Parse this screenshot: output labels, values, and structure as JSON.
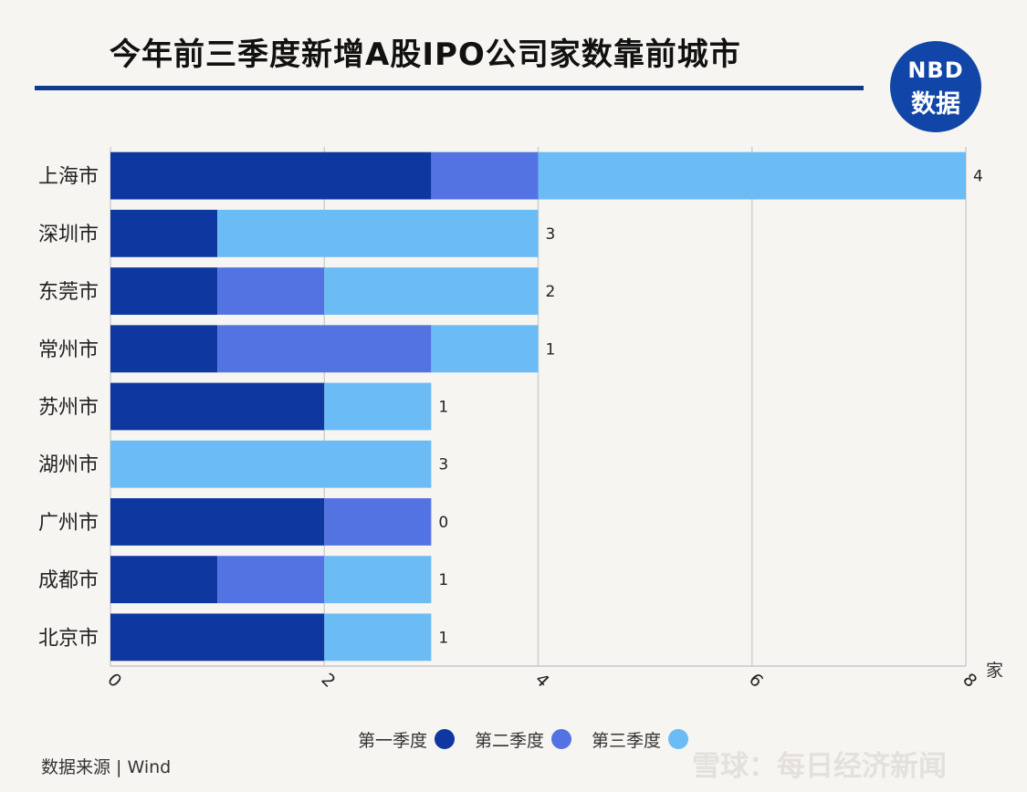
{
  "header": {
    "title": "今年前三季度新增A股IPO公司家数靠前城市",
    "logo_line1": "NBD",
    "logo_line2": "数据"
  },
  "chart_data": {
    "type": "bar",
    "orientation": "horizontal",
    "stacked": true,
    "categories": [
      "上海市",
      "深圳市",
      "东莞市",
      "常州市",
      "苏州市",
      "湖州市",
      "广州市",
      "成都市",
      "北京市"
    ],
    "series": [
      {
        "name": "第一季度",
        "color": "#0e37a0",
        "values": [
          3,
          1,
          1,
          1,
          2,
          0,
          2,
          1,
          2
        ]
      },
      {
        "name": "第二季度",
        "color": "#5473e3",
        "values": [
          1,
          0,
          1,
          2,
          0,
          0,
          1,
          1,
          0
        ]
      },
      {
        "name": "第三季度",
        "color": "#6bbcf4",
        "values": [
          4,
          3,
          2,
          1,
          1,
          3,
          0,
          1,
          1
        ]
      }
    ],
    "end_labels": [
      "4",
      "3",
      "2",
      "1",
      "1",
      "3",
      "0",
      "1",
      "1"
    ],
    "xlim": [
      0,
      8
    ],
    "xticks": [
      "0",
      "2",
      "4",
      "6",
      "8"
    ],
    "x_unit": "家",
    "grid": true,
    "legend_position": "bottom"
  },
  "footer": {
    "source": "数据来源 | Wind",
    "brand": "雪球：每日经济新闻"
  }
}
